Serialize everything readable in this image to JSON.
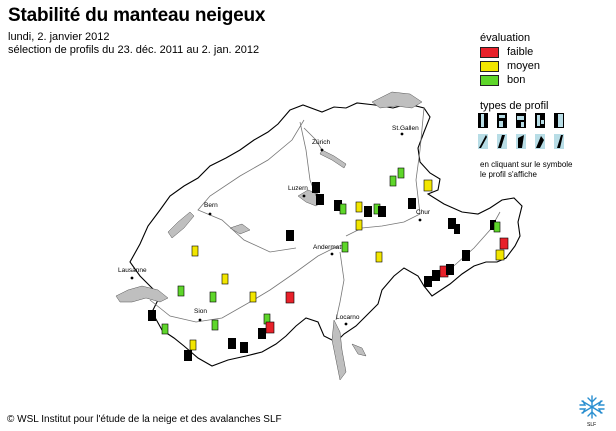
{
  "title": "Stabilité du manteau neigeux",
  "date_line": "lundi, 2. janvier 2012",
  "selection_line": "sélection de profils du 23. déc. 2011 au 2. jan. 2012",
  "legend": {
    "title": "évaluation",
    "items": [
      {
        "label": "faible",
        "color": "#e8212a"
      },
      {
        "label": "moyen",
        "color": "#f2e600"
      },
      {
        "label": "bon",
        "color": "#5ed62a"
      }
    ],
    "profile_types_title": "types de profil",
    "note_line1": "en cliquant sur le symbole",
    "note_line2": "le profil s'affiche",
    "profile_type_icons": [
      "profile-type-1-icon",
      "profile-type-2-icon",
      "profile-type-3-icon",
      "profile-type-4-icon",
      "profile-type-5-icon",
      "profile-type-6-icon",
      "profile-type-7-icon",
      "profile-type-8-icon",
      "profile-type-9-icon",
      "profile-type-10-icon"
    ]
  },
  "cities": [
    "St.Gallen",
    "Zürich",
    "Luzern",
    "Bern",
    "Chur",
    "Andermatt",
    "Lausanne",
    "Sion",
    "Locarno"
  ],
  "footer": "© WSL Institut pour l'étude de la neige et des avalanches SLF",
  "logo_text": "SLF",
  "colors": {
    "map_fill": "#ffffff",
    "border": "#000000",
    "lake": "#bfbfbf",
    "river": "#777777",
    "marker_black": "#000000",
    "marker_light": "#b8dde6"
  }
}
